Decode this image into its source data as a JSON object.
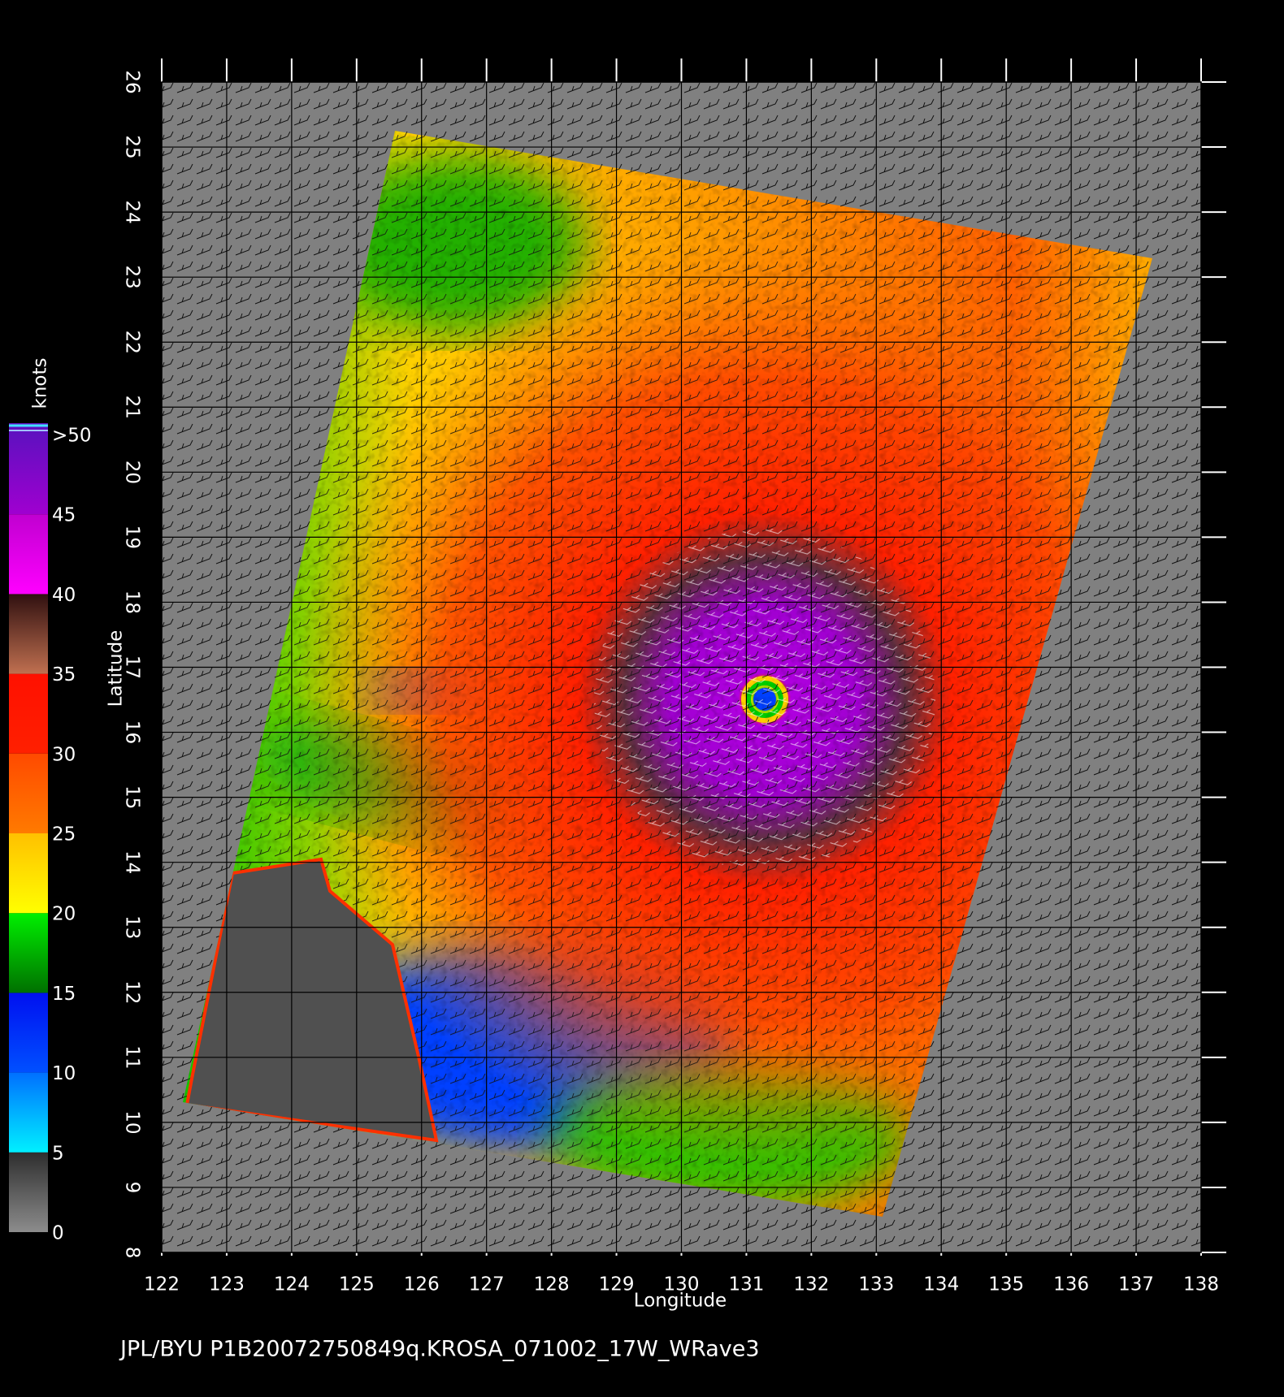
{
  "chart_data": {
    "type": "wind-map",
    "xlabel": "Longitude",
    "ylabel": "Latitude",
    "xlim": [
      122,
      138
    ],
    "ylim": [
      8,
      26
    ],
    "xticks": [
      122,
      123,
      124,
      125,
      126,
      127,
      128,
      129,
      130,
      131,
      132,
      133,
      134,
      135,
      136,
      137,
      138
    ],
    "yticks": [
      8,
      9,
      10,
      11,
      12,
      13,
      14,
      15,
      16,
      17,
      18,
      19,
      20,
      21,
      22,
      23,
      24,
      25,
      26
    ],
    "grid": true,
    "colorbar": {
      "label": "knots",
      "lim": [
        0,
        50
      ],
      "ticks": [
        0,
        5,
        10,
        15,
        20,
        25,
        30,
        35,
        40,
        45,
        {
          "value": 50,
          "label": ">50"
        }
      ],
      "colors": [
        [
          "#8c8c8c",
          "#2e2e2e"
        ],
        [
          "#00f0ff",
          "#0070ff"
        ],
        [
          "#0050ff",
          "#0010f0"
        ],
        [
          "#007000",
          "#00f000"
        ],
        [
          "#ffff00",
          "#ffc000"
        ],
        [
          "#ff7a00",
          "#ff4a00"
        ],
        [
          "#ff2000",
          "#ff1000"
        ],
        [
          "#c07050",
          "#301010"
        ],
        [
          "#ff00ff",
          "#c000d0"
        ],
        [
          "#a000d0",
          "#6010c0"
        ]
      ]
    },
    "footer": "JPL/BYU  P1B20072750849q.KROSA_071002_17W_WRave3"
  }
}
